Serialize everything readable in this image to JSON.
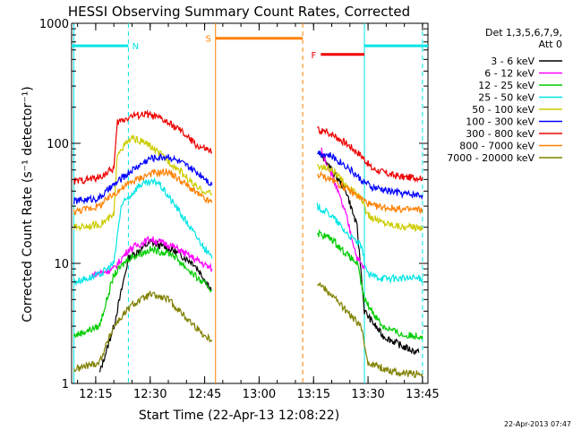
{
  "chart_data": {
    "type": "line",
    "title": "HESSI Observing Summary Count Rates, Corrected",
    "xlabel": "Start Time (22-Apr-13 12:08:22)",
    "ylabel": "Corrected Count Rate (s⁻¹ detector⁻¹)",
    "y_scale": "log",
    "ylim": [
      1,
      1000
    ],
    "xlim": [
      "12:08:22",
      "13:46:30"
    ],
    "x_ticks": [
      "12:15",
      "12:30",
      "12:45",
      "13:00",
      "13:15",
      "13:30",
      "13:45"
    ],
    "y_ticks": [
      "1",
      "10",
      "100",
      "1000"
    ],
    "legend_title": [
      "Det 1,3,5,6,7,9,",
      "Att 0"
    ],
    "legend_position": "right",
    "series": [
      {
        "name": "3 - 6 keV",
        "color": "#000000",
        "points": [
          [
            "12:16",
            1.2
          ],
          [
            "12:20",
            3.0
          ],
          [
            "12:24",
            11.0
          ],
          [
            "12:30",
            15.0
          ],
          [
            "12:36",
            13.0
          ],
          [
            "12:42",
            10.0
          ],
          [
            "12:47",
            6.0
          ],
          [
            "13:17",
            80.0
          ],
          [
            "13:20",
            60.0
          ],
          [
            "13:24",
            40.0
          ],
          [
            "13:27",
            20.0
          ],
          [
            "13:29",
            4.0
          ],
          [
            "13:34",
            2.5
          ],
          [
            "13:40",
            2.0
          ],
          [
            "13:44",
            1.8
          ]
        ]
      },
      {
        "name": "6 - 12 keV",
        "color": "#ff00ff",
        "points": [
          [
            "12:14",
            8.0
          ],
          [
            "12:20",
            9.0
          ],
          [
            "12:24",
            13.0
          ],
          [
            "12:30",
            16.0
          ],
          [
            "12:36",
            14.0
          ],
          [
            "12:42",
            11.0
          ],
          [
            "12:47",
            9.0
          ],
          [
            "13:17",
            90.0
          ],
          [
            "13:20",
            55.0
          ],
          [
            "13:24",
            25.0
          ],
          [
            "13:27",
            11.0
          ],
          [
            "13:29",
            9.0
          ]
        ]
      },
      {
        "name": "12 - 25 keV",
        "color": "#00cc00",
        "points": [
          [
            "12:09",
            2.5
          ],
          [
            "12:16",
            3.0
          ],
          [
            "12:20",
            8.0
          ],
          [
            "12:24",
            11.0
          ],
          [
            "12:30",
            13.0
          ],
          [
            "12:36",
            12.0
          ],
          [
            "12:42",
            8.0
          ],
          [
            "12:47",
            6.0
          ],
          [
            "13:16",
            18.0
          ],
          [
            "13:20",
            16.0
          ],
          [
            "13:24",
            12.0
          ],
          [
            "13:27",
            10.0
          ],
          [
            "13:29",
            5.0
          ],
          [
            "13:34",
            3.0
          ],
          [
            "13:40",
            2.5
          ],
          [
            "13:45",
            2.5
          ]
        ]
      },
      {
        "name": "25 - 50 keV",
        "color": "#00e5e5",
        "points": [
          [
            "12:09",
            7.0
          ],
          [
            "12:16",
            8.0
          ],
          [
            "12:20",
            10.0
          ],
          [
            "12:22",
            30.0
          ],
          [
            "12:27",
            45.0
          ],
          [
            "12:32",
            48.0
          ],
          [
            "12:37",
            30.0
          ],
          [
            "12:42",
            18.0
          ],
          [
            "12:47",
            11.0
          ],
          [
            "13:16",
            30.0
          ],
          [
            "13:20",
            25.0
          ],
          [
            "13:24",
            18.0
          ],
          [
            "13:28",
            14.0
          ],
          [
            "13:30",
            8.0
          ],
          [
            "13:35",
            7.5
          ],
          [
            "13:40",
            7.5
          ],
          [
            "13:45",
            7.5
          ]
        ]
      },
      {
        "name": "50 - 100 keV",
        "color": "#cccc00",
        "points": [
          [
            "12:09",
            20.0
          ],
          [
            "12:16",
            21.0
          ],
          [
            "12:20",
            25.0
          ],
          [
            "12:21",
            85.0
          ],
          [
            "12:25",
            110.0
          ],
          [
            "12:29",
            100.0
          ],
          [
            "12:33",
            80.0
          ],
          [
            "12:38",
            60.0
          ],
          [
            "12:43",
            42.0
          ],
          [
            "12:47",
            38.0
          ],
          [
            "13:16",
            65.0
          ],
          [
            "13:20",
            60.0
          ],
          [
            "13:24",
            45.0
          ],
          [
            "13:28",
            35.0
          ],
          [
            "13:30",
            25.0
          ],
          [
            "13:34",
            22.0
          ],
          [
            "13:40",
            20.0
          ],
          [
            "13:45",
            20.0
          ]
        ]
      },
      {
        "name": "100 - 300 keV",
        "color": "#0000ff",
        "points": [
          [
            "12:09",
            33.0
          ],
          [
            "12:16",
            35.0
          ],
          [
            "12:20",
            45.0
          ],
          [
            "12:25",
            60.0
          ],
          [
            "12:30",
            75.0
          ],
          [
            "12:35",
            78.0
          ],
          [
            "12:40",
            65.0
          ],
          [
            "12:45",
            52.0
          ],
          [
            "12:47",
            45.0
          ],
          [
            "13:16",
            85.0
          ],
          [
            "13:20",
            78.0
          ],
          [
            "13:24",
            65.0
          ],
          [
            "13:28",
            50.0
          ],
          [
            "13:31",
            43.0
          ],
          [
            "13:36",
            40.0
          ],
          [
            "13:40",
            38.0
          ],
          [
            "13:45",
            37.0
          ]
        ]
      },
      {
        "name": "300 - 800 keV",
        "color": "#ee0000",
        "points": [
          [
            "12:09",
            48.0
          ],
          [
            "12:16",
            52.0
          ],
          [
            "12:20",
            62.0
          ],
          [
            "12:21",
            150.0
          ],
          [
            "12:25",
            170.0
          ],
          [
            "12:29",
            175.0
          ],
          [
            "12:33",
            160.0
          ],
          [
            "12:38",
            130.0
          ],
          [
            "12:43",
            95.0
          ],
          [
            "12:47",
            85.0
          ],
          [
            "13:16",
            130.0
          ],
          [
            "13:20",
            120.0
          ],
          [
            "13:24",
            100.0
          ],
          [
            "13:28",
            80.0
          ],
          [
            "13:31",
            62.0
          ],
          [
            "13:36",
            55.0
          ],
          [
            "13:40",
            52.0
          ],
          [
            "13:45",
            52.0
          ]
        ]
      },
      {
        "name": "800 - 7000 keV",
        "color": "#ff8000",
        "points": [
          [
            "12:09",
            27.0
          ],
          [
            "12:16",
            30.0
          ],
          [
            "12:20",
            38.0
          ],
          [
            "12:25",
            48.0
          ],
          [
            "12:30",
            56.0
          ],
          [
            "12:35",
            58.0
          ],
          [
            "12:40",
            45.0
          ],
          [
            "12:45",
            34.0
          ],
          [
            "12:47",
            32.0
          ],
          [
            "13:16",
            55.0
          ],
          [
            "13:20",
            50.0
          ],
          [
            "13:24",
            42.0
          ],
          [
            "13:28",
            35.0
          ],
          [
            "13:31",
            30.0
          ],
          [
            "13:36",
            29.0
          ],
          [
            "13:40",
            28.0
          ],
          [
            "13:45",
            28.0
          ]
        ]
      },
      {
        "name": "7000 - 20000 keV",
        "color": "#808000",
        "points": [
          [
            "12:09",
            1.3
          ],
          [
            "12:16",
            1.5
          ],
          [
            "12:20",
            3.0
          ],
          [
            "12:25",
            4.5
          ],
          [
            "12:30",
            5.5
          ],
          [
            "12:35",
            5.0
          ],
          [
            "12:40",
            3.5
          ],
          [
            "12:45",
            2.5
          ],
          [
            "12:47",
            2.3
          ],
          [
            "13:16",
            7.0
          ],
          [
            "13:20",
            5.5
          ],
          [
            "13:24",
            4.0
          ],
          [
            "13:28",
            3.0
          ],
          [
            "13:30",
            1.5
          ],
          [
            "13:35",
            1.3
          ],
          [
            "13:40",
            1.2
          ],
          [
            "13:45",
            1.2
          ]
        ]
      }
    ],
    "annotations": [
      {
        "label": "N",
        "type": "bar",
        "color": "#00e5e5",
        "y": 650,
        "x_start": "12:08:22",
        "x_end": "12:24:00"
      },
      {
        "label": "",
        "type": "bar",
        "color": "#00e5e5",
        "y": 650,
        "x_start": "13:29:00",
        "x_end": "13:46:30"
      },
      {
        "label": "S",
        "type": "bar",
        "color": "#ff8000",
        "y": 750,
        "x_start": "12:48:00",
        "x_end": "13:12:00"
      },
      {
        "label": "F",
        "type": "bar",
        "color": "#ee0000",
        "y": 550,
        "x_start": "13:17:00",
        "x_end": "13:29:00"
      }
    ],
    "vertical_markers": [
      {
        "time": "12:09:00",
        "color": "#00e5e5",
        "style": "solid"
      },
      {
        "time": "12:24:00",
        "color": "#00e5e5",
        "style": "dashed"
      },
      {
        "time": "12:48:00",
        "color": "#ff8000",
        "style": "solid"
      },
      {
        "time": "13:12:00",
        "color": "#ff8000",
        "style": "dashed"
      },
      {
        "time": "13:29:00",
        "color": "#00e5e5",
        "style": "solid"
      },
      {
        "time": "13:45:00",
        "color": "#00e5e5",
        "style": "dashed"
      }
    ],
    "grid": false
  },
  "footer": {
    "timestamp": "22-Apr-2013 07:47"
  }
}
